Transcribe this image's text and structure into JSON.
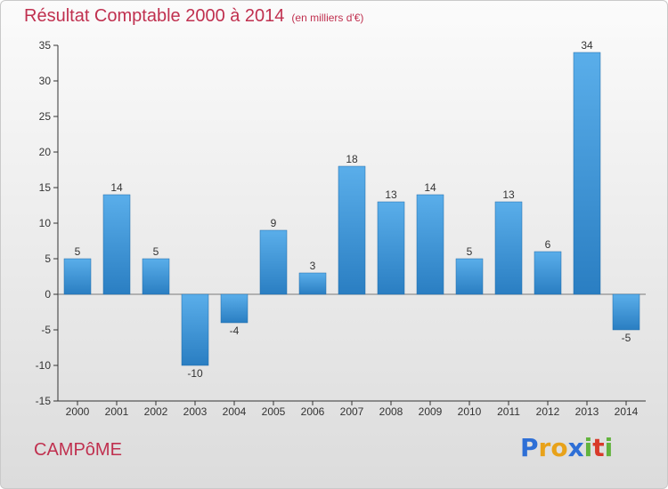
{
  "title": "Résultat Comptable 2000 à 2014",
  "subtitle": "(en milliers d'€)",
  "town": "CAMPôME",
  "logo": {
    "letters": [
      "P",
      "r",
      "o",
      "x",
      "i",
      "t",
      "i"
    ],
    "colors": [
      "#2e6fd6",
      "#e8a21a",
      "#e8a21a",
      "#2e6fd6",
      "#62b33d",
      "#d83a2a",
      "#62b33d"
    ]
  },
  "colors": {
    "title": "#c0304f",
    "bar_light": "#5aaeea",
    "bar_dark": "#2a7ec2"
  },
  "chart_data": {
    "type": "bar",
    "categories": [
      "2000",
      "2001",
      "2002",
      "2003",
      "2004",
      "2005",
      "2006",
      "2007",
      "2008",
      "2009",
      "2010",
      "2011",
      "2012",
      "2013",
      "2014"
    ],
    "values": [
      5,
      14,
      5,
      -10,
      -4,
      9,
      3,
      18,
      13,
      14,
      5,
      13,
      6,
      34,
      -5
    ],
    "ylim": [
      -15,
      35
    ],
    "yticks": [
      35,
      30,
      25,
      20,
      15,
      10,
      5,
      0,
      -5,
      -10,
      -15
    ],
    "grid": false
  }
}
